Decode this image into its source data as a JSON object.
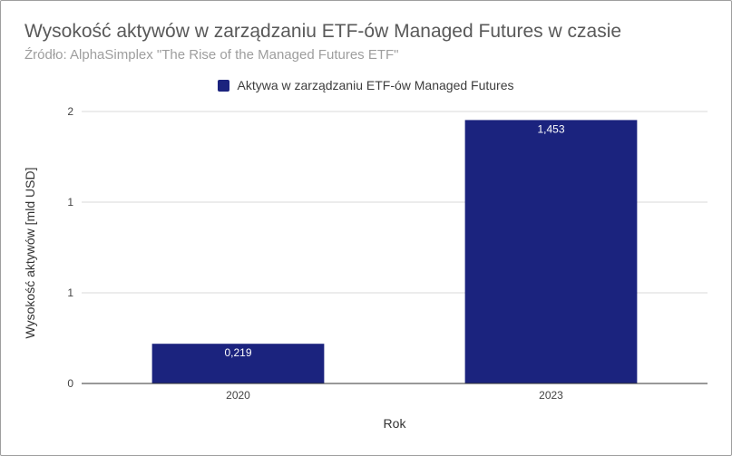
{
  "chart_data": {
    "type": "bar",
    "title": "Wysokość aktywów w zarządzaniu ETF-ów Managed Futures w czasie",
    "subtitle": "Źródło: AlphaSimplex \"The Rise of the Managed Futures ETF\"",
    "xlabel": "Rok",
    "ylabel": "Wysokość aktywów [mld USD]",
    "categories": [
      "2020",
      "2023"
    ],
    "series": [
      {
        "name": "Aktywa w zarządzaniu ETF-ów Managed Futures",
        "values": [
          0.219,
          1.453
        ],
        "data_labels": [
          "0,219",
          "1,453"
        ]
      }
    ],
    "ylim": [
      0,
      1.5
    ],
    "yticks": [
      0,
      0.5,
      1,
      1.5
    ],
    "ytick_labels": [
      "0",
      "1",
      "1",
      "2"
    ],
    "grid": true,
    "legend_position": "top",
    "bar_color": "#1b237e"
  }
}
